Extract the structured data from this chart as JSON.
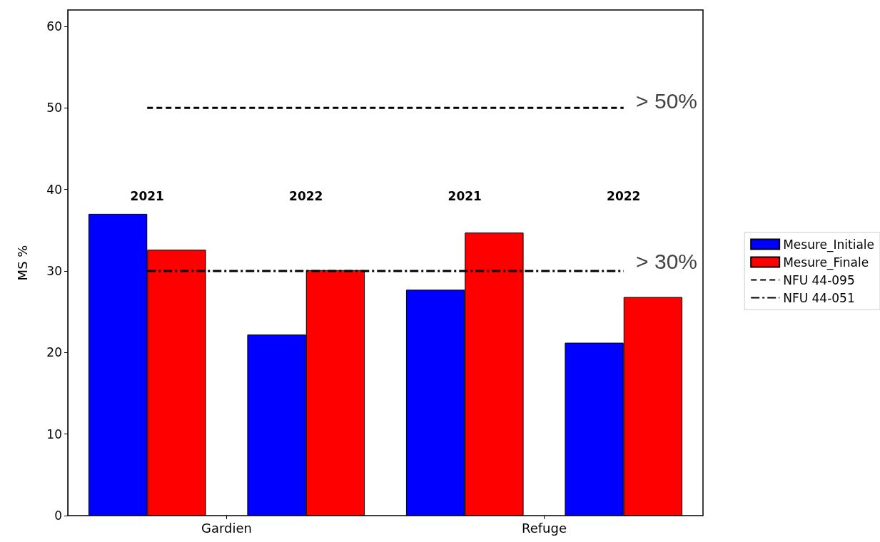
{
  "chart_data": {
    "type": "bar",
    "ylabel": "MS %",
    "categories": [
      "2021",
      "2022",
      "2021",
      "2022"
    ],
    "series": [
      {
        "name": "Mesure_Initiale",
        "color": "#0000ff",
        "values": [
          37,
          22.2,
          27.7,
          21.2
        ]
      },
      {
        "name": "Mesure_Finale",
        "color": "#ff0000",
        "values": [
          32.6,
          30.1,
          34.7,
          26.8
        ]
      },
      {
        "name": "NFU 44-095",
        "type": "line",
        "color": "#000000",
        "line_style": "dashed",
        "values": [
          50,
          50,
          50,
          50
        ]
      },
      {
        "name": "NFU 44-051",
        "type": "line",
        "color": "#000000",
        "line_style": "dashdot",
        "values": [
          30,
          30,
          30,
          30
        ]
      }
    ],
    "annotations": [
      "Gardien",
      "Refuge",
      "> 50%",
      "> 30%"
    ],
    "ylim": [
      0,
      62
    ],
    "yticks": [
      0,
      10,
      20,
      30,
      40,
      50,
      60
    ],
    "grid": false,
    "legend": "right",
    "marker": "none"
  }
}
